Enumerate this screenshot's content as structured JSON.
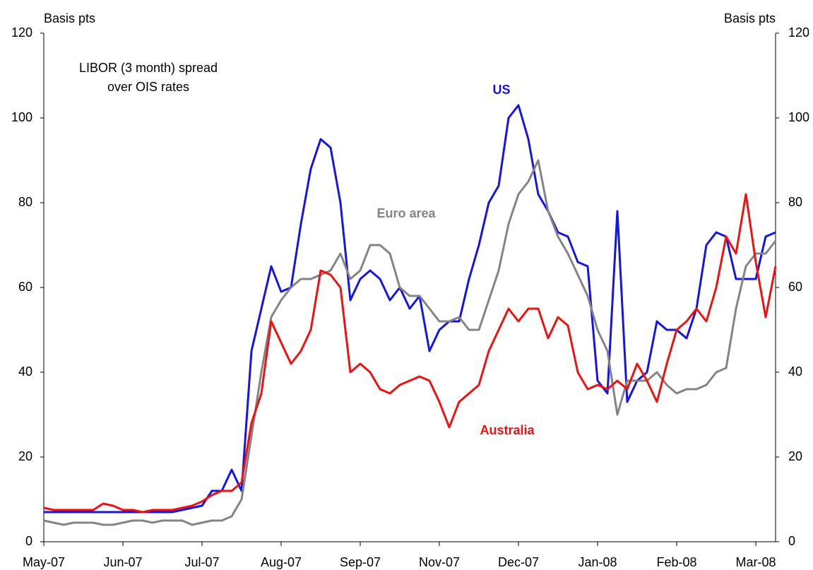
{
  "chart_data": {
    "type": "line",
    "y_label_left": "Basis pts",
    "y_label_right": "Basis pts",
    "note": [
      "LIBOR (3 month) spread",
      "over OIS rates"
    ],
    "categories": [
      "May-07",
      null,
      null,
      null,
      null,
      null,
      null,
      null,
      "Jun-07",
      null,
      null,
      null,
      null,
      null,
      null,
      null,
      "Jul-07",
      null,
      null,
      null,
      null,
      null,
      null,
      null,
      "Aug-07",
      null,
      null,
      null,
      null,
      null,
      null,
      null,
      "Sep-07",
      null,
      null,
      null,
      null,
      null,
      null,
      null,
      "Nov-07",
      null,
      null,
      null,
      null,
      null,
      null,
      null,
      "Dec-07",
      null,
      null,
      null,
      null,
      null,
      null,
      null,
      "Jan-08",
      null,
      null,
      null,
      null,
      null,
      null,
      null,
      "Feb-08",
      null,
      null,
      null,
      null,
      null,
      null,
      null,
      "Mar-08",
      null,
      null
    ],
    "series": [
      {
        "name": "US",
        "color": "#1414e6",
        "values": [
          7,
          7,
          7,
          7,
          7,
          7,
          7,
          7,
          7,
          7,
          7,
          7,
          7,
          7,
          7.5,
          8,
          8.5,
          12,
          12,
          17,
          12,
          45,
          55,
          65,
          59,
          60,
          75,
          88,
          95,
          93,
          80,
          57,
          62,
          64,
          62,
          57,
          60,
          55,
          58,
          45,
          50,
          52,
          52,
          62,
          70,
          80,
          84,
          100,
          103,
          95,
          82,
          78,
          73,
          72,
          66,
          65,
          38,
          35,
          78,
          33,
          38,
          40,
          52,
          50,
          50,
          48,
          55,
          70,
          73,
          72,
          62,
          62,
          62,
          72,
          73
        ]
      },
      {
        "name": "Euro area",
        "color": "#848484",
        "values": [
          5,
          4.5,
          4,
          4.5,
          4.5,
          4.5,
          4,
          4,
          4.5,
          5,
          5,
          4.5,
          5,
          5,
          5,
          4,
          4.5,
          5,
          5,
          6,
          10,
          25,
          40,
          53,
          57,
          60,
          62,
          62,
          63,
          64,
          68,
          62,
          64,
          70,
          70,
          68,
          60,
          58,
          58,
          55,
          52,
          52,
          53,
          50,
          50,
          57,
          64,
          75,
          82,
          85,
          90,
          78,
          72,
          68,
          63,
          58,
          50,
          45,
          30,
          38,
          38,
          38,
          40,
          37,
          35,
          36,
          36,
          37,
          40,
          41,
          55,
          65,
          68,
          68,
          71
        ]
      },
      {
        "name": "Australia",
        "color": "#f01010",
        "values": [
          8,
          7.5,
          7.5,
          7.5,
          7.5,
          7.5,
          9,
          8.5,
          7.5,
          7.5,
          7,
          7.5,
          7.5,
          7.5,
          8,
          8.5,
          9.5,
          11,
          12,
          12,
          14,
          28,
          35,
          52,
          47,
          42,
          45,
          50,
          64,
          63,
          60,
          40,
          42,
          40,
          36,
          35,
          37,
          38,
          39,
          38,
          33,
          27,
          33,
          35,
          37,
          45,
          50,
          55,
          52,
          55,
          55,
          48,
          53,
          51,
          40,
          36,
          37,
          36,
          38,
          36,
          42,
          38,
          33,
          42,
          50,
          52,
          55,
          52,
          60,
          72,
          68,
          82,
          66,
          53,
          65
        ]
      }
    ],
    "ylim": [
      0,
      120
    ],
    "yticks": [
      0,
      20,
      40,
      60,
      80,
      100,
      120
    ],
    "grid": false
  }
}
